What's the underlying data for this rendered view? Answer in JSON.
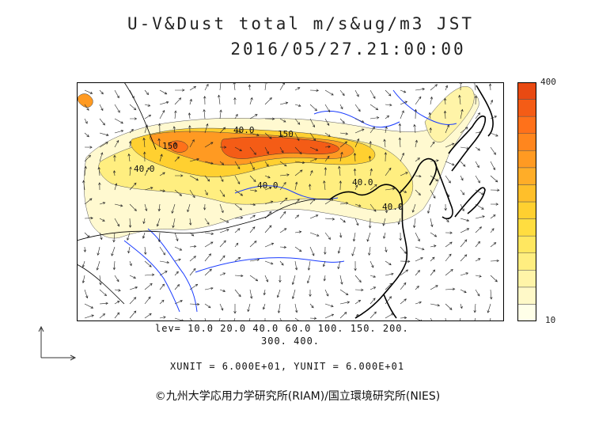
{
  "title": {
    "line1": "U-V&Dust total m/s&ug/m3 JST",
    "line2": "2016/05/27.21:00:00"
  },
  "colorbar": {
    "max_label": "400",
    "min_label": "10",
    "colors": [
      "#FFFFE8",
      "#FFF9C8",
      "#FFF4A8",
      "#FFEE80",
      "#FFE760",
      "#FFDD40",
      "#FFD030",
      "#FFBF2A",
      "#FFAD28",
      "#FF9A22",
      "#FF861E",
      "#FF711A",
      "#F45C16",
      "#E94A12"
    ]
  },
  "contour_labels": [
    "40.0",
    "40.0",
    "150",
    "150",
    "40.0",
    "40.0",
    "40.0"
  ],
  "levels": {
    "line1": "lev= 10.0 20.0 40.0 60.0 100. 150. 200.",
    "line2": "300. 400."
  },
  "units": "XUNIT = 6.000E+01, YUNIT = 6.000E+01",
  "credit": "©九州大学応用力学研究所(RIAM)/国立環境研究所(NIES)"
}
